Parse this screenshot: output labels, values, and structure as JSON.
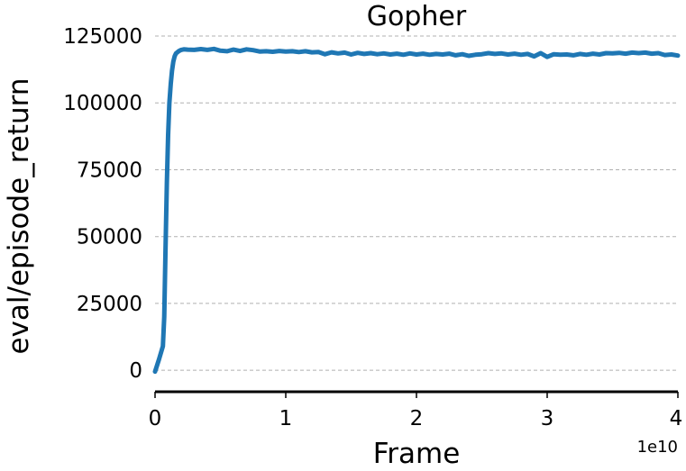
{
  "chart_data": {
    "type": "line",
    "title": "Gopher",
    "xlabel": "Frame",
    "ylabel": "eval/episode_return",
    "x_offset_label": "1e10",
    "xlim": [
      0,
      4
    ],
    "ylim": [
      -5000,
      125000
    ],
    "grid": "y-dashed",
    "x_ticks": [
      0,
      1,
      2,
      3,
      4
    ],
    "x_tick_labels": [
      "0",
      "1",
      "2",
      "3",
      "4"
    ],
    "y_ticks": [
      0,
      25000,
      50000,
      75000,
      100000,
      125000
    ],
    "y_tick_labels": [
      "0",
      "25000",
      "50000",
      "75000",
      "100000",
      "125000"
    ],
    "series_color": "#1f77b4",
    "series": [
      {
        "x": [
          0.0,
          0.03,
          0.06,
          0.07,
          0.08,
          0.09,
          0.1,
          0.11,
          0.12,
          0.13,
          0.14,
          0.15,
          0.16,
          0.18,
          0.2,
          0.22,
          0.25,
          0.3,
          0.35,
          0.4,
          0.45,
          0.5,
          0.55,
          0.6,
          0.65,
          0.7,
          0.75,
          0.8,
          0.85,
          0.9,
          0.95,
          1.0,
          1.05,
          1.1,
          1.15,
          1.2,
          1.25,
          1.3,
          1.35,
          1.4,
          1.45,
          1.5,
          1.55,
          1.6,
          1.65,
          1.7,
          1.75,
          1.8,
          1.85,
          1.9,
          1.95,
          2.0,
          2.05,
          2.1,
          2.15,
          2.2,
          2.25,
          2.3,
          2.35,
          2.4,
          2.45,
          2.5,
          2.55,
          2.6,
          2.65,
          2.7,
          2.75,
          2.8,
          2.85,
          2.9,
          2.95,
          3.0,
          3.05,
          3.1,
          3.15,
          3.2,
          3.25,
          3.3,
          3.35,
          3.4,
          3.45,
          3.5,
          3.55,
          3.6,
          3.65,
          3.7,
          3.75,
          3.8,
          3.85,
          3.9,
          3.95,
          4.0
        ],
        "y": [
          -500,
          4000,
          9000,
          20000,
          45000,
          70000,
          88000,
          100000,
          107000,
          112000,
          115500,
          117500,
          118500,
          119300,
          119800,
          120000,
          119900,
          119800,
          120100,
          119800,
          120200,
          119500,
          119300,
          119900,
          119400,
          120000,
          119700,
          119200,
          119300,
          119100,
          119400,
          119200,
          119300,
          119000,
          119300,
          118900,
          119000,
          118200,
          118900,
          118500,
          118800,
          118100,
          118700,
          118300,
          118600,
          118200,
          118500,
          118100,
          118400,
          118000,
          118500,
          118100,
          118400,
          118000,
          118300,
          118100,
          118400,
          117800,
          118200,
          117600,
          118000,
          118200,
          118600,
          118300,
          118500,
          118100,
          118400,
          118000,
          118300,
          117400,
          118600,
          117200,
          118200,
          118000,
          118100,
          117800,
          118300,
          118000,
          118400,
          118100,
          118600,
          118500,
          118700,
          118400,
          118800,
          118600,
          118800,
          118400,
          118600,
          117900,
          118100,
          117700
        ]
      }
    ]
  }
}
